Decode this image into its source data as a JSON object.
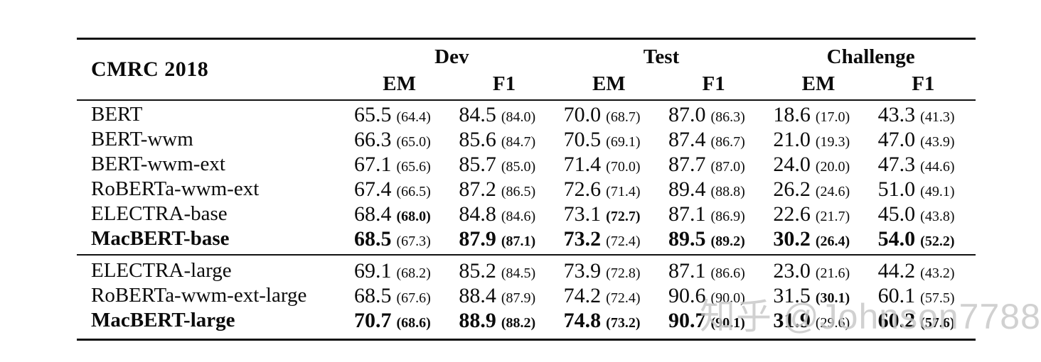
{
  "table": {
    "title": "CMRC 2018",
    "groups": [
      "Dev",
      "Test",
      "Challenge"
    ],
    "subheaders": [
      "EM",
      "F1",
      "EM",
      "F1",
      "EM",
      "F1"
    ],
    "sections": [
      {
        "rows": [
          {
            "model": "BERT",
            "model_bold": false,
            "cells": [
              {
                "v": "65.5",
                "p": "(64.4)",
                "vb": false,
                "pb": false
              },
              {
                "v": "84.5",
                "p": "(84.0)",
                "vb": false,
                "pb": false
              },
              {
                "v": "70.0",
                "p": "(68.7)",
                "vb": false,
                "pb": false
              },
              {
                "v": "87.0",
                "p": "(86.3)",
                "vb": false,
                "pb": false
              },
              {
                "v": "18.6",
                "p": "(17.0)",
                "vb": false,
                "pb": false
              },
              {
                "v": "43.3",
                "p": "(41.3)",
                "vb": false,
                "pb": false
              }
            ]
          },
          {
            "model": "BERT-wwm",
            "model_bold": false,
            "cells": [
              {
                "v": "66.3",
                "p": "(65.0)",
                "vb": false,
                "pb": false
              },
              {
                "v": "85.6",
                "p": "(84.7)",
                "vb": false,
                "pb": false
              },
              {
                "v": "70.5",
                "p": "(69.1)",
                "vb": false,
                "pb": false
              },
              {
                "v": "87.4",
                "p": "(86.7)",
                "vb": false,
                "pb": false
              },
              {
                "v": "21.0",
                "p": "(19.3)",
                "vb": false,
                "pb": false
              },
              {
                "v": "47.0",
                "p": "(43.9)",
                "vb": false,
                "pb": false
              }
            ]
          },
          {
            "model": "BERT-wwm-ext",
            "model_bold": false,
            "cells": [
              {
                "v": "67.1",
                "p": "(65.6)",
                "vb": false,
                "pb": false
              },
              {
                "v": "85.7",
                "p": "(85.0)",
                "vb": false,
                "pb": false
              },
              {
                "v": "71.4",
                "p": "(70.0)",
                "vb": false,
                "pb": false
              },
              {
                "v": "87.7",
                "p": "(87.0)",
                "vb": false,
                "pb": false
              },
              {
                "v": "24.0",
                "p": "(20.0)",
                "vb": false,
                "pb": false
              },
              {
                "v": "47.3",
                "p": "(44.6)",
                "vb": false,
                "pb": false
              }
            ]
          },
          {
            "model": "RoBERTa-wwm-ext",
            "model_bold": false,
            "cells": [
              {
                "v": "67.4",
                "p": "(66.5)",
                "vb": false,
                "pb": false
              },
              {
                "v": "87.2",
                "p": "(86.5)",
                "vb": false,
                "pb": false
              },
              {
                "v": "72.6",
                "p": "(71.4)",
                "vb": false,
                "pb": false
              },
              {
                "v": "89.4",
                "p": "(88.8)",
                "vb": false,
                "pb": false
              },
              {
                "v": "26.2",
                "p": "(24.6)",
                "vb": false,
                "pb": false
              },
              {
                "v": "51.0",
                "p": "(49.1)",
                "vb": false,
                "pb": false
              }
            ]
          },
          {
            "model": "ELECTRA-base",
            "model_bold": false,
            "cells": [
              {
                "v": "68.4",
                "p": "(68.0)",
                "vb": false,
                "pb": true
              },
              {
                "v": "84.8",
                "p": "(84.6)",
                "vb": false,
                "pb": false
              },
              {
                "v": "73.1",
                "p": "(72.7)",
                "vb": false,
                "pb": true
              },
              {
                "v": "87.1",
                "p": "(86.9)",
                "vb": false,
                "pb": false
              },
              {
                "v": "22.6",
                "p": "(21.7)",
                "vb": false,
                "pb": false
              },
              {
                "v": "45.0",
                "p": "(43.8)",
                "vb": false,
                "pb": false
              }
            ]
          },
          {
            "model": "MacBERT-base",
            "model_bold": true,
            "cells": [
              {
                "v": "68.5",
                "p": "(67.3)",
                "vb": true,
                "pb": false
              },
              {
                "v": "87.9",
                "p": "(87.1)",
                "vb": true,
                "pb": true
              },
              {
                "v": "73.2",
                "p": "(72.4)",
                "vb": true,
                "pb": false
              },
              {
                "v": "89.5",
                "p": "(89.2)",
                "vb": true,
                "pb": true
              },
              {
                "v": "30.2",
                "p": "(26.4)",
                "vb": true,
                "pb": true
              },
              {
                "v": "54.0",
                "p": "(52.2)",
                "vb": true,
                "pb": true
              }
            ]
          }
        ]
      },
      {
        "rows": [
          {
            "model": "ELECTRA-large",
            "model_bold": false,
            "cells": [
              {
                "v": "69.1",
                "p": "(68.2)",
                "vb": false,
                "pb": false
              },
              {
                "v": "85.2",
                "p": "(84.5)",
                "vb": false,
                "pb": false
              },
              {
                "v": "73.9",
                "p": "(72.8)",
                "vb": false,
                "pb": false
              },
              {
                "v": "87.1",
                "p": "(86.6)",
                "vb": false,
                "pb": false
              },
              {
                "v": "23.0",
                "p": "(21.6)",
                "vb": false,
                "pb": false
              },
              {
                "v": "44.2",
                "p": "(43.2)",
                "vb": false,
                "pb": false
              }
            ]
          },
          {
            "model": "RoBERTa-wwm-ext-large",
            "model_bold": false,
            "cells": [
              {
                "v": "68.5",
                "p": "(67.6)",
                "vb": false,
                "pb": false
              },
              {
                "v": "88.4",
                "p": "(87.9)",
                "vb": false,
                "pb": false
              },
              {
                "v": "74.2",
                "p": "(72.4)",
                "vb": false,
                "pb": false
              },
              {
                "v": "90.6",
                "p": "(90.0)",
                "vb": false,
                "pb": false
              },
              {
                "v": "31.5",
                "p": "(30.1)",
                "vb": false,
                "pb": true
              },
              {
                "v": "60.1",
                "p": "(57.5)",
                "vb": false,
                "pb": false
              }
            ]
          },
          {
            "model": "MacBERT-large",
            "model_bold": true,
            "cells": [
              {
                "v": "70.7",
                "p": "(68.6)",
                "vb": true,
                "pb": true
              },
              {
                "v": "88.9",
                "p": "(88.2)",
                "vb": true,
                "pb": true
              },
              {
                "v": "74.8",
                "p": "(73.2)",
                "vb": true,
                "pb": true
              },
              {
                "v": "90.7",
                "p": "(90.1)",
                "vb": true,
                "pb": true
              },
              {
                "v": "31.9",
                "p": "(29.6)",
                "vb": true,
                "pb": false
              },
              {
                "v": "60.2",
                "p": "(57.6)",
                "vb": true,
                "pb": true
              }
            ]
          }
        ]
      }
    ]
  },
  "watermark": {
    "text": "知乎 @Johnson7788",
    "color": "#c7c7c7"
  }
}
